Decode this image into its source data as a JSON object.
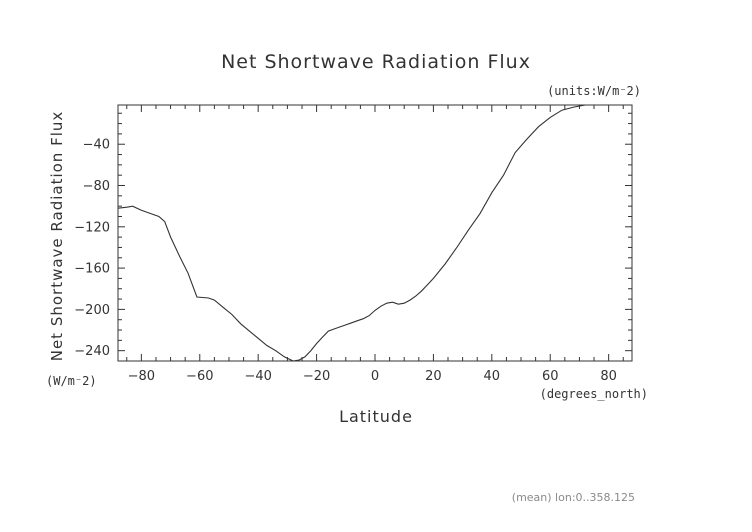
{
  "chart_data": {
    "type": "line",
    "title": "Net Shortwave Radiation Flux",
    "units_label": "(units:W/m⁻2)",
    "xlabel": "Latitude",
    "x_units": "(degrees_north)",
    "ylabel": "Net Shortwave Radiation Flux",
    "y_units": "(W/m⁻2)",
    "footer_note": "(mean) lon:0..358.125",
    "xlim": [
      -88,
      88
    ],
    "ylim": [
      -250,
      -2
    ],
    "x_ticks": [
      -80,
      -60,
      -40,
      -20,
      0,
      20,
      40,
      60,
      80
    ],
    "x_tick_labels": [
      "−80",
      "−60",
      "−40",
      "−20",
      "0",
      "20",
      "40",
      "60",
      "80"
    ],
    "y_ticks": [
      -40,
      -80,
      -120,
      -160,
      -200,
      -240
    ],
    "y_tick_labels": [
      "−40",
      "−80",
      "−120",
      "−160",
      "−200",
      "−240"
    ],
    "line_color": "#333333",
    "series": [
      {
        "x": [
          -88,
          -85,
          -83,
          -80,
          -77,
          -74,
          -72,
          -70,
          -67,
          -64,
          -61,
          -57,
          -55,
          -52,
          -49,
          -46,
          -43,
          -40,
          -37,
          -34,
          -31,
          -28,
          -26,
          -24,
          -22,
          -20,
          -18,
          -16,
          -14,
          -12,
          -10,
          -8,
          -6,
          -4,
          -2,
          0,
          2,
          4,
          6,
          8,
          10,
          12,
          14,
          16,
          18,
          20,
          24,
          28,
          32,
          36,
          40,
          44,
          48,
          52,
          56,
          60,
          64,
          68,
          72,
          76,
          80,
          84,
          88
        ],
        "values": [
          -102,
          -101,
          -100,
          -104,
          -107,
          -110,
          -115,
          -130,
          -148,
          -165,
          -188,
          -189,
          -191,
          -198,
          -205,
          -214,
          -221,
          -228,
          -235,
          -240,
          -246,
          -250,
          -249,
          -246,
          -240,
          -233,
          -227,
          -221,
          -219,
          -217,
          -215,
          -213,
          -211,
          -209,
          -206,
          -201,
          -197,
          -194,
          -193,
          -195,
          -194,
          -191,
          -187,
          -182,
          -176,
          -170,
          -156,
          -140,
          -123,
          -107,
          -87,
          -70,
          -48,
          -35,
          -23,
          -14,
          -7,
          -4,
          -2,
          -2,
          -2,
          -2,
          -2
        ]
      }
    ]
  }
}
